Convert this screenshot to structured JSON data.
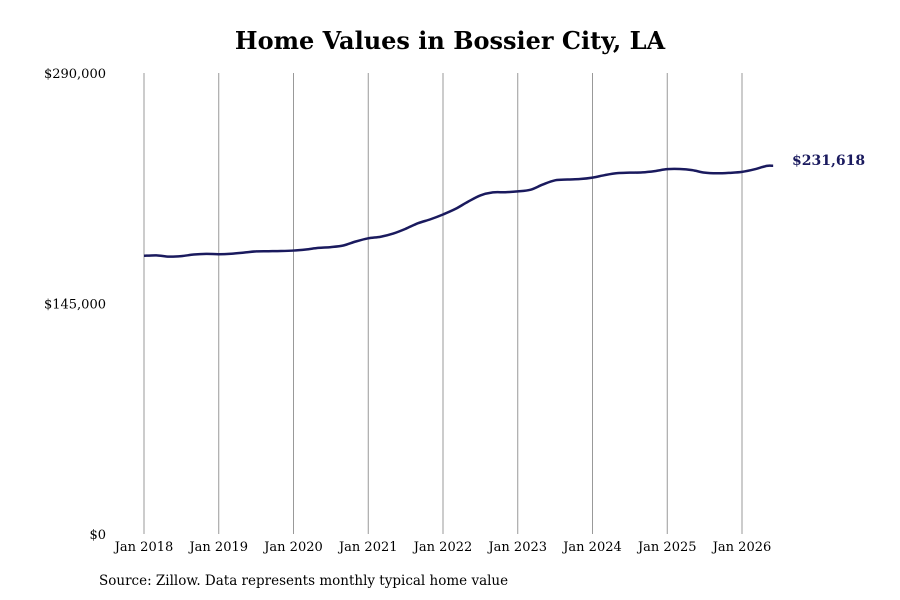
{
  "chart_data": {
    "type": "line",
    "title": "Home Values in Bossier City, LA",
    "source": "Source: Zillow. Data represents monthly typical home value",
    "xlabel": "",
    "ylabel": "",
    "ylim": [
      0,
      290000
    ],
    "y_ticks": [
      {
        "value": 0,
        "label": "$0"
      },
      {
        "value": 145000,
        "label": "$145,000"
      },
      {
        "value": 290000,
        "label": "$290,000"
      }
    ],
    "x_range": [
      "2018-01",
      "2026-06"
    ],
    "x_ticks": [
      {
        "date": "2018-01",
        "label": "Jan 2018"
      },
      {
        "date": "2019-01",
        "label": "Jan 2019"
      },
      {
        "date": "2020-01",
        "label": "Jan 2020"
      },
      {
        "date": "2021-01",
        "label": "Jan 2021"
      },
      {
        "date": "2022-01",
        "label": "Jan 2022"
      },
      {
        "date": "2023-01",
        "label": "Jan 2023"
      },
      {
        "date": "2024-01",
        "label": "Jan 2024"
      },
      {
        "date": "2025-01",
        "label": "Jan 2025"
      },
      {
        "date": "2026-01",
        "label": "Jan 2026"
      }
    ],
    "grid": {
      "vertical": true,
      "horizontal": false
    },
    "line_color": "#1a1a5e",
    "grid_color": "#999999",
    "end_label": "$231,618",
    "series": [
      {
        "points": [
          [
            "2018-01",
            175000
          ],
          [
            "2018-03",
            175300
          ],
          [
            "2018-05",
            174500
          ],
          [
            "2018-07",
            174800
          ],
          [
            "2018-09",
            175800
          ],
          [
            "2018-11",
            176200
          ],
          [
            "2019-01",
            176000
          ],
          [
            "2019-03",
            176300
          ],
          [
            "2019-05",
            177000
          ],
          [
            "2019-07",
            177800
          ],
          [
            "2019-09",
            177900
          ],
          [
            "2019-11",
            178000
          ],
          [
            "2020-01",
            178300
          ],
          [
            "2020-03",
            179000
          ],
          [
            "2020-05",
            180000
          ],
          [
            "2020-07",
            180500
          ],
          [
            "2020-09",
            181500
          ],
          [
            "2020-11",
            184000
          ],
          [
            "2021-01",
            186000
          ],
          [
            "2021-03",
            187000
          ],
          [
            "2021-05",
            189000
          ],
          [
            "2021-07",
            192000
          ],
          [
            "2021-09",
            195500
          ],
          [
            "2021-11",
            198000
          ],
          [
            "2022-01",
            201000
          ],
          [
            "2022-03",
            204500
          ],
          [
            "2022-05",
            209000
          ],
          [
            "2022-07",
            213000
          ],
          [
            "2022-09",
            214900
          ],
          [
            "2022-11",
            215000
          ],
          [
            "2023-01",
            215500
          ],
          [
            "2023-03",
            216500
          ],
          [
            "2023-05",
            219800
          ],
          [
            "2023-07",
            222500
          ],
          [
            "2023-09",
            223000
          ],
          [
            "2023-11",
            223300
          ],
          [
            "2024-01",
            224200
          ],
          [
            "2024-03",
            225800
          ],
          [
            "2024-05",
            227000
          ],
          [
            "2024-07",
            227300
          ],
          [
            "2024-09",
            227500
          ],
          [
            "2024-11",
            228300
          ],
          [
            "2025-01",
            229500
          ],
          [
            "2025-03",
            229600
          ],
          [
            "2025-05",
            228900
          ],
          [
            "2025-07",
            227300
          ],
          [
            "2025-09",
            226900
          ],
          [
            "2025-11",
            227200
          ],
          [
            "2026-01",
            227800
          ],
          [
            "2026-03",
            229400
          ],
          [
            "2026-05",
            231600
          ],
          [
            "2026-06",
            231618
          ]
        ]
      }
    ]
  }
}
